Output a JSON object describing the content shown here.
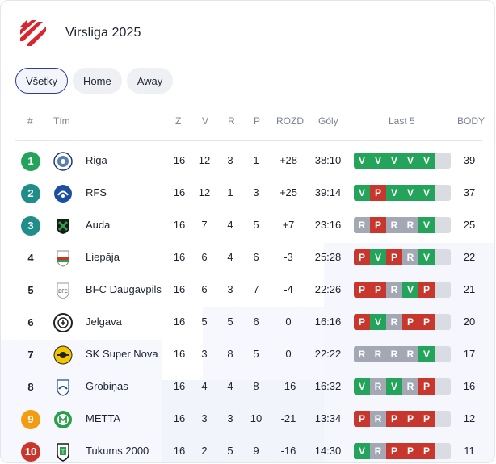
{
  "header": {
    "title": "Virsliga 2025"
  },
  "tabs": [
    {
      "label": "Všetky",
      "active": true
    },
    {
      "label": "Home",
      "active": false
    },
    {
      "label": "Away",
      "active": false
    }
  ],
  "columns": {
    "rank": "#",
    "team": "Tím",
    "played": "Z",
    "won": "V",
    "drawn": "R",
    "lost": "P",
    "diff": "ROZD",
    "goals": "Góly",
    "form": "Last 5",
    "points": "BODY"
  },
  "colors": {
    "win": "#23a45a",
    "loss": "#c8372d",
    "draw": "#a3a8b4",
    "champ": "#23a45a",
    "europe": "#1f8d8a",
    "conf": "#f39c12",
    "releg": "#c8372d",
    "brand": "#d9252d"
  },
  "rows": [
    {
      "rank": "1",
      "rank_style": "champ",
      "team": "Riga",
      "crest": "riga-crest-icon",
      "played": "16",
      "won": "12",
      "drawn": "3",
      "lost": "1",
      "diff": "+28",
      "goals": "38:10",
      "form": [
        "V",
        "V",
        "V",
        "V",
        "V"
      ],
      "points": "39"
    },
    {
      "rank": "2",
      "rank_style": "europe",
      "team": "RFS",
      "crest": "rfs-crest-icon",
      "played": "16",
      "won": "12",
      "drawn": "1",
      "lost": "3",
      "diff": "+25",
      "goals": "39:14",
      "form": [
        "V",
        "P",
        "V",
        "V",
        "V"
      ],
      "points": "37"
    },
    {
      "rank": "3",
      "rank_style": "europe",
      "team": "Auda",
      "crest": "auda-crest-icon",
      "played": "16",
      "won": "7",
      "drawn": "4",
      "lost": "5",
      "diff": "+7",
      "goals": "23:16",
      "form": [
        "R",
        "P",
        "R",
        "R",
        "V"
      ],
      "points": "25"
    },
    {
      "rank": "4",
      "rank_style": "plain",
      "team": "Liepāja",
      "crest": "liepaja-crest-icon",
      "played": "16",
      "won": "6",
      "drawn": "4",
      "lost": "6",
      "diff": "-3",
      "goals": "25:28",
      "form": [
        "P",
        "V",
        "P",
        "R",
        "V"
      ],
      "points": "22"
    },
    {
      "rank": "5",
      "rank_style": "plain",
      "team": "BFC Daugavpils",
      "crest": "bfc-daugavpils-crest-icon",
      "played": "16",
      "won": "6",
      "drawn": "3",
      "lost": "7",
      "diff": "-4",
      "goals": "22:26",
      "form": [
        "P",
        "P",
        "R",
        "V",
        "P"
      ],
      "points": "21"
    },
    {
      "rank": "6",
      "rank_style": "plain",
      "team": "Jelgava",
      "crest": "jelgava-crest-icon",
      "played": "16",
      "won": "5",
      "drawn": "5",
      "lost": "6",
      "diff": "0",
      "goals": "16:16",
      "form": [
        "P",
        "V",
        "R",
        "P",
        "P"
      ],
      "points": "20"
    },
    {
      "rank": "7",
      "rank_style": "plain",
      "team": "SK Super Nova",
      "crest": "super-nova-crest-icon",
      "played": "16",
      "won": "3",
      "drawn": "8",
      "lost": "5",
      "diff": "0",
      "goals": "22:22",
      "form": [
        "R",
        "R",
        "R",
        "R",
        "V"
      ],
      "points": "17"
    },
    {
      "rank": "8",
      "rank_style": "plain",
      "team": "Grobiņas",
      "crest": "grobinas-crest-icon",
      "played": "16",
      "won": "4",
      "drawn": "4",
      "lost": "8",
      "diff": "-16",
      "goals": "16:32",
      "form": [
        "V",
        "R",
        "V",
        "R",
        "P"
      ],
      "points": "16"
    },
    {
      "rank": "9",
      "rank_style": "conf",
      "team": "METTA",
      "crest": "metta-crest-icon",
      "played": "16",
      "won": "3",
      "drawn": "3",
      "lost": "10",
      "diff": "-21",
      "goals": "13:34",
      "form": [
        "P",
        "R",
        "P",
        "P",
        "P"
      ],
      "points": "12"
    },
    {
      "rank": "10",
      "rank_style": "releg",
      "team": "Tukums 2000",
      "crest": "tukums-crest-icon",
      "played": "16",
      "won": "2",
      "drawn": "5",
      "lost": "9",
      "diff": "-16",
      "goals": "14:30",
      "form": [
        "V",
        "R",
        "P",
        "P",
        "P"
      ],
      "points": "11"
    }
  ]
}
